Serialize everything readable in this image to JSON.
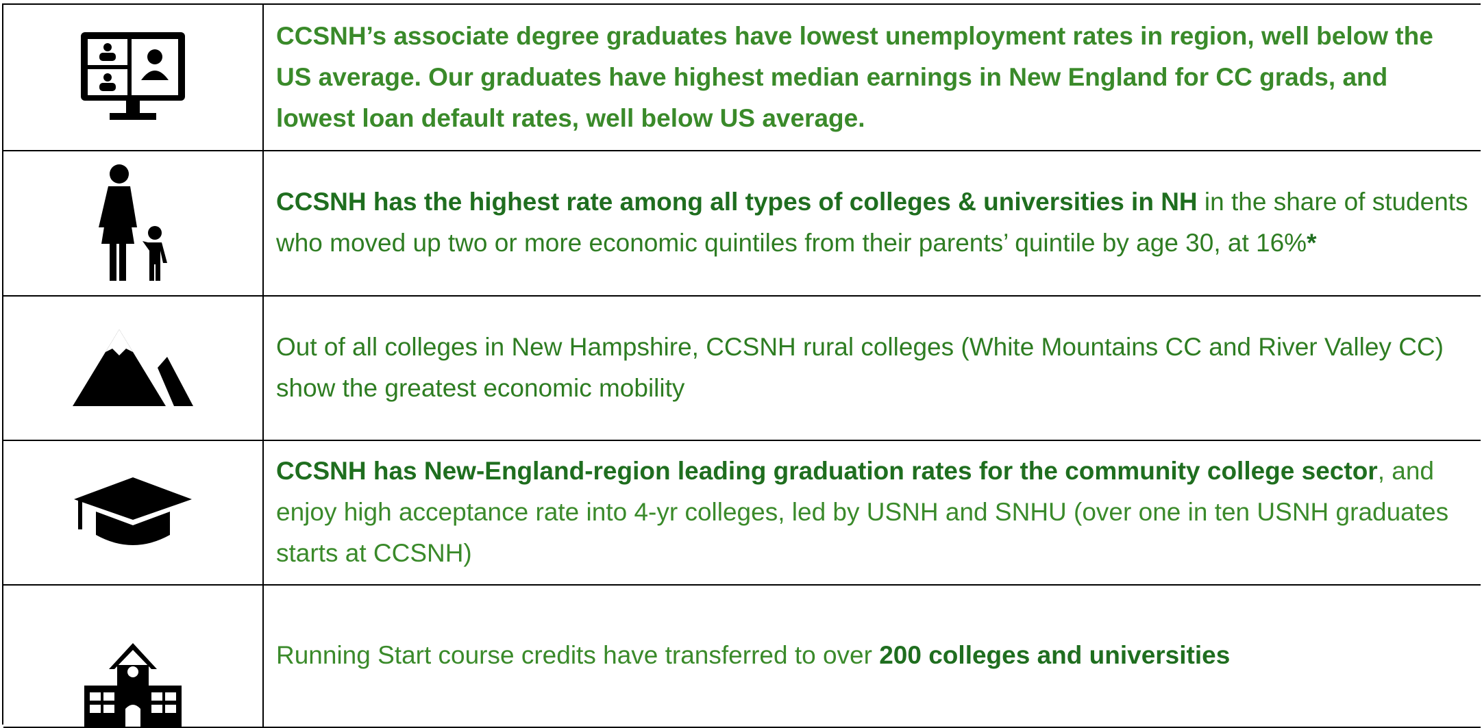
{
  "rows": [
    {
      "segments": [
        {
          "text": "CCSNH’s associate degree graduates have lowest unemployment rates in region, well below the US average. Our graduates have highest median earnings in New England for CC grads, and lowest loan default rates, well below US average.",
          "bold": true
        }
      ]
    },
    {
      "segments": [
        {
          "text": "CCSNH has the highest rate among all types of colleges & universities in NH",
          "bold": true
        },
        {
          "text": " in the share of students who moved up two or more economic quintiles from their parents’ quintile by age 30, at 16%",
          "bold": false
        },
        {
          "text": "*",
          "bold": true
        }
      ]
    },
    {
      "segments": [
        {
          "text": "Out of all colleges in New Hampshire, CCSNH rural colleges (White Mountains CC and River Valley CC) show the greatest economic mobility",
          "bold": false
        }
      ]
    },
    {
      "segments": [
        {
          "text": "CCSNH has New-England-region leading graduation rates for the community college sector",
          "bold": true
        },
        {
          "text": ", and enjoy high acceptance rate into 4-yr colleges, led by USNH and SNHU (over one in ten USNH graduates starts at CCSNH)",
          "bold": false
        }
      ]
    },
    {
      "segments": [
        {
          "text": "Running Start course credits have transferred to over ",
          "bold": false
        },
        {
          "text": "200 colleges and universities",
          "bold": true
        }
      ]
    }
  ]
}
